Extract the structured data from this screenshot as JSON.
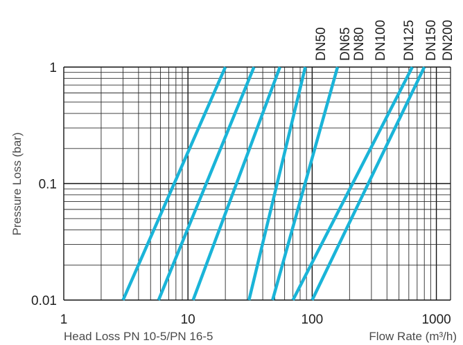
{
  "chart_data": {
    "type": "line",
    "xscale": "log",
    "yscale": "log",
    "xlim": [
      1,
      1300
    ],
    "ylim": [
      0.01,
      1
    ],
    "x_ticks": [
      "1",
      "10",
      "100",
      "1000"
    ],
    "y_ticks": [
      "0.01",
      "0.1",
      "1"
    ],
    "xlabel": "Flow Rate (m³/h)",
    "ylabel": "Pressure Loss (bar)",
    "footer_left": "Head Loss PN 10-5/PN 16-5",
    "grid": true,
    "line_color": "#1ab4d8",
    "series": [
      {
        "name": "DN50",
        "x": [
          3,
          20
        ],
        "y": [
          0.01,
          1
        ]
      },
      {
        "name": "DN65",
        "x": [
          5.8,
          34
        ],
        "y": [
          0.01,
          1
        ]
      },
      {
        "name": "DN80",
        "x": [
          11,
          55
        ],
        "y": [
          0.01,
          1
        ]
      },
      {
        "name": "DN100",
        "x": [
          31,
          88
        ],
        "y": [
          0.01,
          1
        ]
      },
      {
        "name": "DN125",
        "x": [
          48,
          160
        ],
        "y": [
          0.01,
          1
        ]
      },
      {
        "name": "DN150",
        "x": [
          70,
          640
        ],
        "y": [
          0.01,
          1
        ]
      },
      {
        "name": "DN200",
        "x": [
          100,
          800
        ],
        "y": [
          0.01,
          1
        ]
      }
    ]
  }
}
